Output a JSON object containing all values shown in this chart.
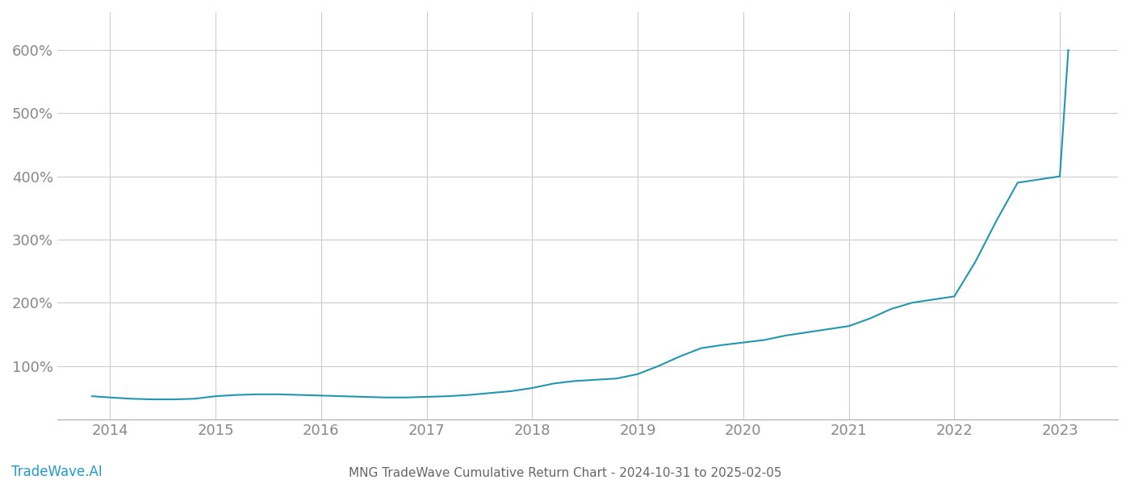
{
  "title": "MNG TradeWave Cumulative Return Chart - 2024-10-31 to 2025-02-05",
  "watermark": "TradeWave.AI",
  "line_color": "#2196b0",
  "background_color": "#ffffff",
  "grid_color": "#cccccc",
  "x_years": [
    2014,
    2015,
    2016,
    2017,
    2018,
    2019,
    2020,
    2021,
    2022,
    2023
  ],
  "y_ticks": [
    100,
    200,
    300,
    400,
    500,
    600
  ],
  "ylim": [
    15,
    660
  ],
  "xlim": [
    2013.5,
    2023.55
  ],
  "data_x": [
    2013.83,
    2014.0,
    2014.2,
    2014.4,
    2014.6,
    2014.8,
    2015.0,
    2015.2,
    2015.4,
    2015.6,
    2015.8,
    2016.0,
    2016.2,
    2016.4,
    2016.6,
    2016.8,
    2017.0,
    2017.2,
    2017.4,
    2017.6,
    2017.8,
    2018.0,
    2018.2,
    2018.4,
    2018.6,
    2018.8,
    2019.0,
    2019.2,
    2019.4,
    2019.6,
    2019.8,
    2020.0,
    2020.2,
    2020.4,
    2020.6,
    2020.8,
    2021.0,
    2021.2,
    2021.4,
    2021.6,
    2021.8,
    2022.0,
    2022.2,
    2022.4,
    2022.6,
    2022.8,
    2023.0,
    2023.08
  ],
  "data_y": [
    52,
    50,
    48,
    47,
    47,
    48,
    52,
    54,
    55,
    55,
    54,
    53,
    52,
    51,
    50,
    50,
    51,
    52,
    54,
    57,
    60,
    65,
    72,
    76,
    78,
    80,
    87,
    100,
    115,
    128,
    133,
    137,
    141,
    148,
    153,
    158,
    163,
    175,
    190,
    200,
    205,
    210,
    265,
    330,
    390,
    395,
    400,
    600
  ],
  "title_fontsize": 11,
  "tick_fontsize": 13,
  "watermark_fontsize": 12,
  "line_width": 1.5,
  "title_color": "#666666",
  "tick_color": "#888888",
  "watermark_color": "#2299cc"
}
